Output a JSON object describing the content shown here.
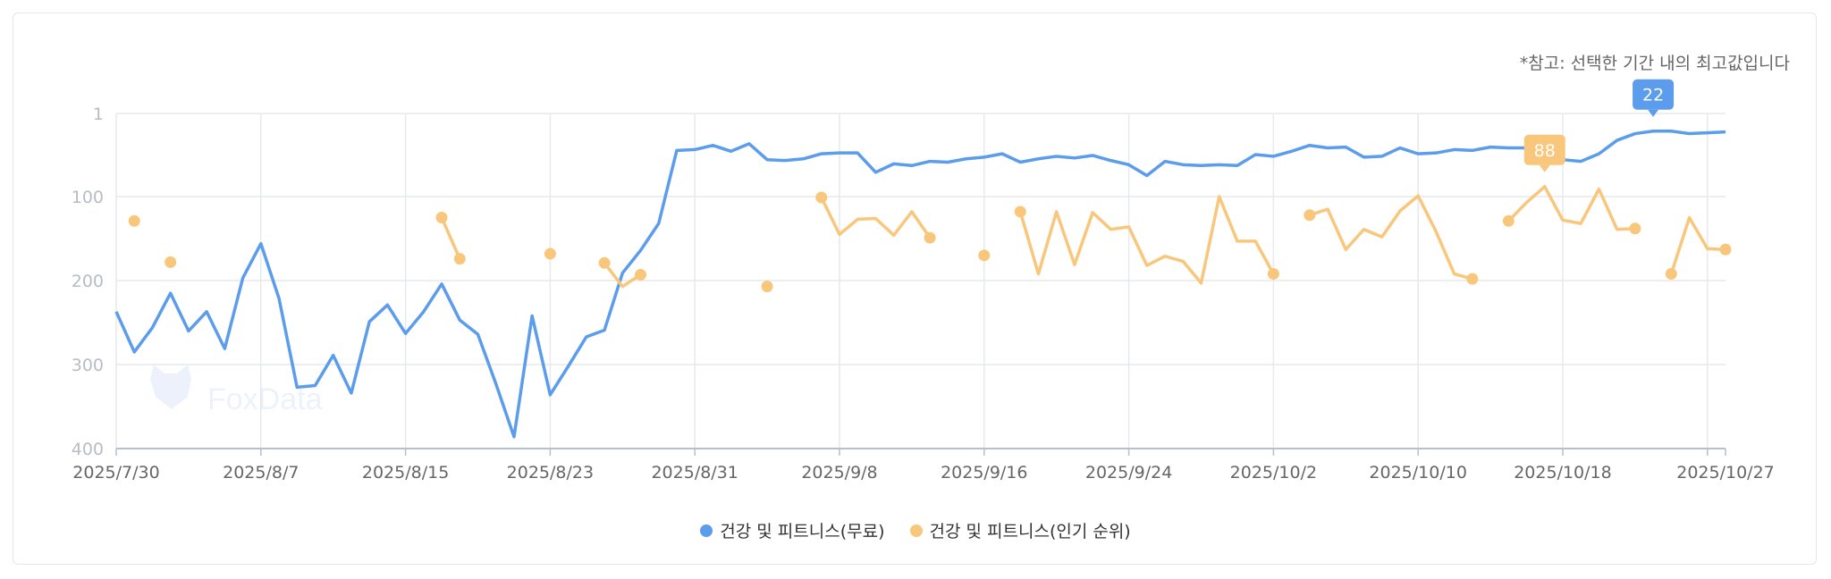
{
  "note": "*참고: 선택한 기간 내의 최고값입니다",
  "watermark": "FoxData",
  "chart_data": {
    "type": "line",
    "title": "",
    "xlabel": "",
    "ylabel": "",
    "y_inverted": true,
    "ylim": [
      1,
      400
    ],
    "yticks": [
      "1",
      "100",
      "200",
      "300",
      "400"
    ],
    "ytick_values": [
      1,
      100,
      200,
      300,
      400
    ],
    "start_date": "2025/7/30",
    "num_days": 90,
    "xticks": [
      {
        "day": 0,
        "label": "2025/7/30"
      },
      {
        "day": 8,
        "label": "2025/8/7"
      },
      {
        "day": 16,
        "label": "2025/8/15"
      },
      {
        "day": 24,
        "label": "2025/8/23"
      },
      {
        "day": 32,
        "label": "2025/8/31"
      },
      {
        "day": 40,
        "label": "2025/9/8"
      },
      {
        "day": 48,
        "label": "2025/9/16"
      },
      {
        "day": 56,
        "label": "2025/9/24"
      },
      {
        "day": 64,
        "label": "2025/10/2"
      },
      {
        "day": 72,
        "label": "2025/10/10"
      },
      {
        "day": 80,
        "label": "2025/10/18"
      },
      {
        "day": 89,
        "label": "2025/10/27"
      }
    ],
    "grid": true,
    "legend_position": "bottom-center",
    "series": [
      {
        "name": "건강 및 피트니스(무료)",
        "color": "#5b9cec",
        "best_label": "22",
        "best_day": 85,
        "values": [
          237,
          285,
          256,
          215,
          260,
          237,
          281,
          197,
          156,
          221,
          327,
          325,
          289,
          334,
          249,
          229,
          263,
          237,
          204,
          247,
          264,
          323,
          386,
          242,
          336,
          302,
          267,
          259,
          191,
          164,
          132,
          45,
          44,
          39,
          46,
          37,
          56,
          57,
          55,
          49,
          48,
          48,
          71,
          61,
          63,
          58,
          59,
          55,
          53,
          49,
          59,
          55,
          52,
          54,
          51,
          57,
          62,
          75,
          58,
          62,
          63,
          62,
          63,
          50,
          52,
          46,
          39,
          42,
          41,
          53,
          52,
          42,
          49,
          48,
          44,
          45,
          41,
          42,
          42,
          55,
          56,
          58,
          49,
          33,
          25,
          22,
          22,
          25,
          24,
          23
        ]
      },
      {
        "name": "건강 및 피트니스(인기 순위)",
        "color": "#f9c77b",
        "best_label": "88",
        "best_day": 79,
        "values": [
          null,
          129,
          null,
          178,
          null,
          null,
          null,
          null,
          null,
          null,
          null,
          null,
          null,
          null,
          null,
          null,
          null,
          null,
          125,
          174,
          null,
          null,
          null,
          null,
          168,
          null,
          null,
          179,
          207,
          193,
          null,
          null,
          null,
          null,
          null,
          null,
          207,
          null,
          null,
          101,
          145,
          127,
          126,
          146,
          118,
          149,
          null,
          null,
          170,
          null,
          118,
          192,
          118,
          181,
          119,
          139,
          136,
          182,
          171,
          177,
          203,
          100,
          153,
          153,
          192,
          null,
          122,
          115,
          163,
          139,
          148,
          117,
          99,
          142,
          192,
          198,
          null,
          129,
          107,
          88,
          128,
          132,
          91,
          139,
          138,
          null,
          192,
          125,
          162,
          163
        ]
      }
    ]
  }
}
